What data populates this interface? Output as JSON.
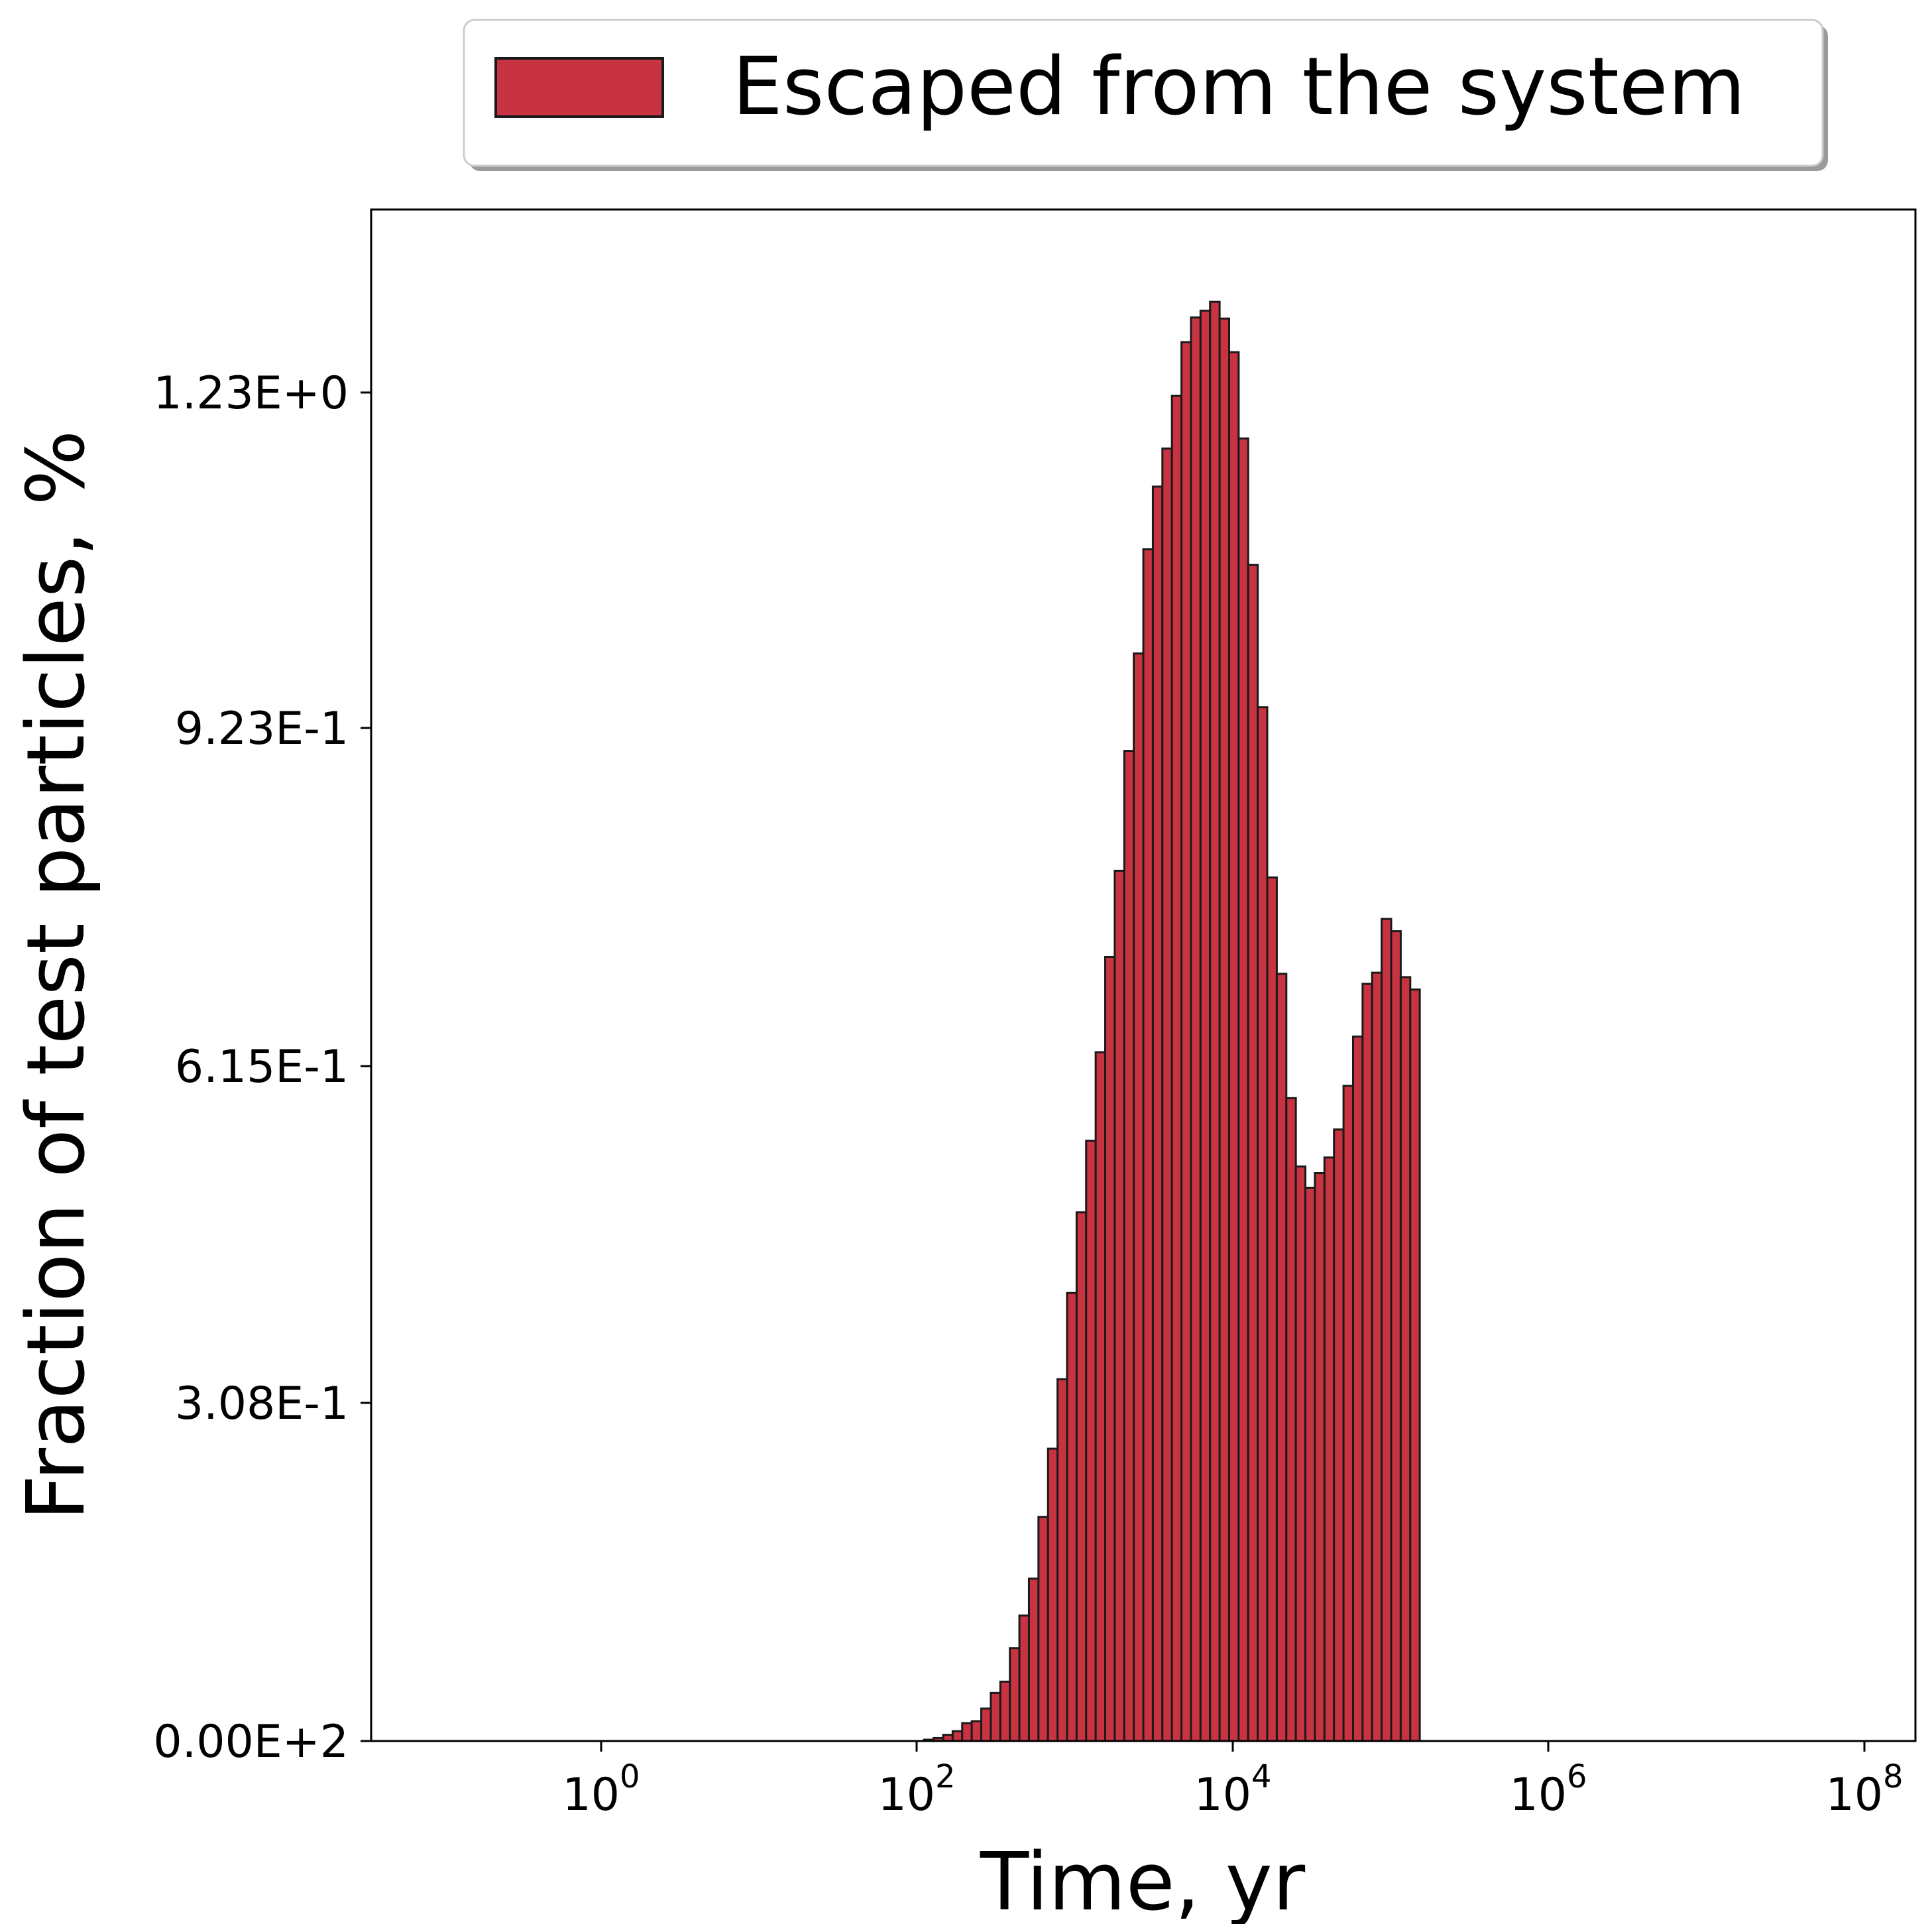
{
  "chart_data": {
    "type": "bar",
    "title": "",
    "xlabel": "Time, yr",
    "ylabel": "Fraction of test particles, %",
    "x_scale": "log",
    "xlim": [
      0.01,
      150000000
    ],
    "ylim": [
      0,
      1.3674
    ],
    "x_ticks": [
      {
        "base": "10",
        "exp": "0",
        "value": 1
      },
      {
        "base": "10",
        "exp": "2",
        "value": 100
      },
      {
        "base": "10",
        "exp": "4",
        "value": 10000
      },
      {
        "base": "10",
        "exp": "6",
        "value": 1000000
      },
      {
        "base": "10",
        "exp": "8",
        "value": 100000000
      }
    ],
    "y_ticks": [
      {
        "label": "0.00E+2",
        "value": 0
      },
      {
        "label": "3.08E-1",
        "value": 0.308
      },
      {
        "label": "6.15E-1",
        "value": 0.615
      },
      {
        "label": "9.23E-1",
        "value": 0.923
      },
      {
        "label": "1.23E+0",
        "value": 1.23
      }
    ],
    "grid": false,
    "legend_position": "top-center-above-plot",
    "series": [
      {
        "name": "Escaped from the system",
        "color": "#c83341",
        "edge_color": "#1a1a1a",
        "bin_edges_log10": [
          -2,
          4.91
        ],
        "values": [
          0,
          0,
          0,
          0,
          0,
          0,
          0,
          0,
          0,
          0,
          0,
          0,
          0,
          0,
          0,
          0,
          0,
          0,
          0,
          0,
          0,
          0,
          0,
          0,
          0,
          0,
          0,
          0,
          0,
          0,
          0,
          0,
          0,
          0,
          0,
          0,
          0,
          0,
          0,
          0,
          0,
          0,
          0,
          0,
          0,
          0,
          0,
          0,
          0,
          0,
          0,
          0,
          0,
          0,
          0,
          0,
          0,
          0,
          0.0012,
          0.0027,
          0.0055,
          0.0088,
          0.016,
          0.0177,
          0.029,
          0.043,
          0.053,
          0.083,
          0.112,
          0.145,
          0.2,
          0.261,
          0.323,
          0.4,
          0.472,
          0.536,
          0.615,
          0.7,
          0.777,
          0.884,
          0.971,
          1.064,
          1.12,
          1.154,
          1.201,
          1.249,
          1.271,
          1.277,
          1.285,
          1.27,
          1.24,
          1.163,
          1.05,
          0.923,
          0.771,
          0.685,
          0.574,
          0.513,
          0.494,
          0.507,
          0.521,
          0.546,
          0.585,
          0.629,
          0.676,
          0.686,
          0.734,
          0.723,
          0.682,
          0.671
        ]
      }
    ]
  }
}
